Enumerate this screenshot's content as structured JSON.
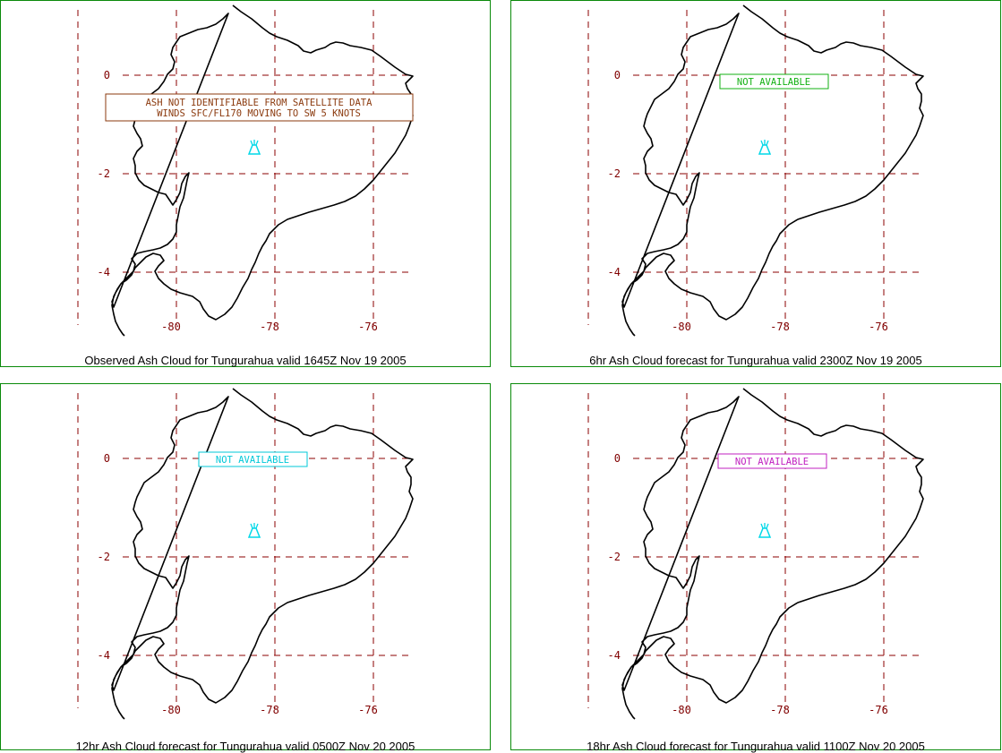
{
  "lat_labels": [
    "0",
    "-2",
    "-4"
  ],
  "lon_labels": [
    "-80",
    "-78",
    "-76"
  ],
  "panels": [
    {
      "caption": "Observed Ash Cloud for Tungurahua valid 1645Z Nov 19 2005",
      "note_lines": [
        "ASH NOT IDENTIFIABLE FROM SATELLITE DATA",
        "WINDS SFC/FL170 MOVING TO SW 5 KNOTS"
      ],
      "note_color": "#8b3a0e"
    },
    {
      "caption": "6hr Ash Cloud forecast for Tungurahua valid 2300Z Nov 19 2005",
      "note_lines": [
        "NOT AVAILABLE"
      ],
      "note_color": "#13b113"
    },
    {
      "caption": "12hr Ash Cloud forecast for Tungurahua valid 0500Z Nov 20 2005",
      "note_lines": [
        "NOT AVAILABLE"
      ],
      "note_color": "#00c8d8"
    },
    {
      "caption": "18hr Ash Cloud forecast for Tungurahua valid 1100Z Nov 20 2005",
      "note_lines": [
        "NOT AVAILABLE"
      ],
      "note_color": "#c020c0"
    }
  ],
  "colors": {
    "grid": "#8b0000",
    "coast": "#000000",
    "volcano": "#00d8e8",
    "frame": "#0a8a0a"
  },
  "icons": {
    "volcano": "volcano-icon"
  }
}
